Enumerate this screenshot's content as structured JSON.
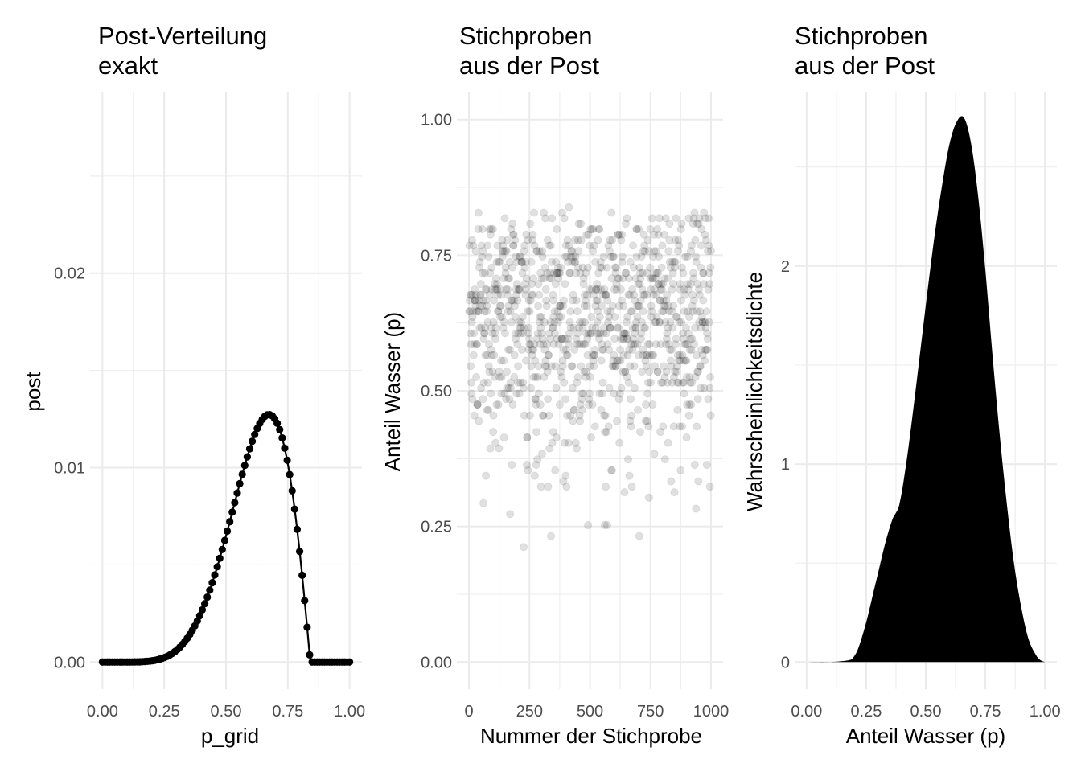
{
  "chart_data": [
    {
      "type": "line",
      "title": [
        "Post-Verteilung",
        "exakt"
      ],
      "xlabel": "p_grid",
      "ylabel": "post",
      "xlim": [
        0,
        1
      ],
      "ylim": [
        0,
        0.0279
      ],
      "x_ticks": [
        0,
        0.25,
        0.5,
        0.75,
        1
      ],
      "x_tick_labels": [
        "0.00",
        "0.25",
        "0.50",
        "0.75",
        "1.00"
      ],
      "y_ticks": [
        0,
        0.01,
        0.02
      ],
      "y_tick_labels": [
        "0.00",
        "0.01",
        "0.02"
      ],
      "grid": true,
      "series": [
        {
          "x": [
            0,
            0.0101,
            0.0202,
            0.0303,
            0.0404,
            0.0505,
            0.0606,
            0.0707,
            0.0808,
            0.0909,
            0.101,
            0.1111,
            0.1212,
            0.1313,
            0.1414,
            0.1515,
            0.1616,
            0.1717,
            0.1818,
            0.1919,
            0.202,
            0.2121,
            0.2222,
            0.2323,
            0.2424,
            0.2525,
            0.2626,
            0.2727,
            0.2828,
            0.2929,
            0.303,
            0.3131,
            0.3232,
            0.3333,
            0.3434,
            0.3535,
            0.3636,
            0.3737,
            0.3838,
            0.3939,
            0.404,
            0.4141,
            0.4242,
            0.4343,
            0.4444,
            0.4545,
            0.4646,
            0.4747,
            0.4848,
            0.4949,
            0.5051,
            0.5152,
            0.5253,
            0.5354,
            0.5455,
            0.5556,
            0.5657,
            0.5758,
            0.5859,
            0.596,
            0.6061,
            0.6162,
            0.6263,
            0.6364,
            0.6465,
            0.6566,
            0.6667,
            0.6768,
            0.6869,
            0.697,
            0.7071,
            0.7172,
            0.7273,
            0.7374,
            0.7475,
            0.7576,
            0.7677,
            0.7778,
            0.7879,
            0.798,
            0.8081,
            0.8182,
            0.8283,
            0.8384,
            0.8485,
            0.8586,
            0.8687,
            0.8788,
            0.8889,
            0.899,
            0.9091,
            0.9192,
            0.9293,
            0.9394,
            0.9495,
            0.9596,
            0.9697,
            0.9798,
            0.9899,
            1
          ],
          "y": [
            0,
            0,
            0,
            0,
            0,
            0,
            0,
            1e-07,
            3e-07,
            6e-07,
            1.1e-06,
            2e-06,
            3.4e-06,
            5.4e-06,
            8.4e-06,
            1.26e-05,
            1.84e-05,
            2.63e-05,
            3.67e-05,
            5.03e-05,
            6.76e-05,
            8.94e-05,
            0.0001165,
            0.0001498,
            0.0001902,
            0.0002387,
            0.0002965,
            0.0003646,
            0.0004441,
            0.0005362,
            0.0006421,
            0.000763,
            0.0008999,
            0.0010539,
            0.0012259,
            0.001417,
            0.0016279,
            0.0018594,
            0.0021119,
            0.002386,
            0.0026818,
            0.0029993,
            0.0033385,
            0.0036989,
            0.0040799,
            0.0044807,
            0.0049002,
            0.005337,
            0.0057893,
            0.0062551,
            0.0067321,
            0.0072175,
            0.0077082,
            0.0082009,
            0.0086919,
            0.009177,
            0.009652,
            0.0101122,
            0.0105527,
            0.0109685,
            0.0113541,
            0.011704,
            0.0120125,
            0.0122738,
            0.0124819,
            0.0126308,
            0.0127145,
            0.012727,
            0.0126625,
            0.0125155,
            0.0122806,
            0.0119531,
            0.0115288,
            0.0110042,
            0.0103767,
            0.0096447,
            0.0088077,
            0.0078669,
            0.0068254,
            0.0056881,
            0.0044622,
            0.0031577,
            0.0017872,
            0.0003667,
            0,
            0,
            0,
            0,
            0,
            0,
            0,
            0,
            0,
            0,
            0,
            0,
            0,
            0,
            0,
            0
          ],
          "marker": "point"
        }
      ]
    },
    {
      "type": "scatter",
      "title": [
        "Stichproben",
        "aus der Post"
      ],
      "xlabel": "Nummer der Stichprobe",
      "ylabel": "Anteil Wasser  (p)",
      "xlim": [
        0,
        1000
      ],
      "ylim": [
        0,
        1
      ],
      "x_ticks": [
        0,
        250,
        500,
        750,
        1000
      ],
      "x_tick_labels": [
        "0",
        "250",
        "500",
        "750",
        "1000"
      ],
      "y_ticks": [
        0,
        0.25,
        0.5,
        0.75,
        1
      ],
      "y_tick_labels": [
        "0.00",
        "0.25",
        "0.50",
        "0.75",
        "1.00"
      ],
      "grid": true,
      "n_samples": 1000,
      "point_color": "#000000",
      "point_alpha": 0.12
    },
    {
      "type": "area",
      "title": [
        "Stichproben",
        "aus der Post"
      ],
      "xlabel": "Anteil Wasser (p)",
      "ylabel": "Wahrscheinlichkeitsdichte",
      "xlim": [
        0,
        1
      ],
      "ylim": [
        0,
        2.74
      ],
      "x_ticks": [
        0,
        0.25,
        0.5,
        0.75,
        1
      ],
      "x_tick_labels": [
        "0.00",
        "0.25",
        "0.50",
        "0.75",
        "1.00"
      ],
      "y_ticks": [
        0,
        1,
        2
      ],
      "y_tick_labels": [
        "0",
        "1",
        "2"
      ],
      "grid": true,
      "fill_color": "#000000",
      "x": [
        0,
        0.1,
        0.18,
        0.2,
        0.22,
        0.25,
        0.28,
        0.3,
        0.33,
        0.36,
        0.39,
        0.42,
        0.45,
        0.48,
        0.51,
        0.54,
        0.57,
        0.6,
        0.63,
        0.66,
        0.69,
        0.72,
        0.75,
        0.78,
        0.81,
        0.84,
        0.87,
        0.9,
        0.93,
        0.96,
        0.98,
        1
      ],
      "y": [
        0,
        0,
        0.01,
        0.03,
        0.08,
        0.2,
        0.35,
        0.45,
        0.6,
        0.72,
        0.8,
        1.02,
        1.3,
        1.6,
        1.9,
        2.18,
        2.42,
        2.62,
        2.73,
        2.75,
        2.62,
        2.35,
        1.98,
        1.55,
        1.15,
        0.8,
        0.5,
        0.28,
        0.12,
        0.04,
        0.01,
        0
      ]
    }
  ]
}
